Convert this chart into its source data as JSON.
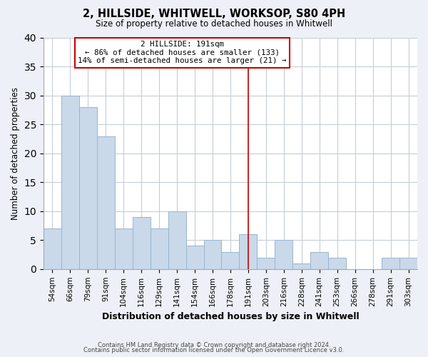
{
  "title": "2, HILLSIDE, WHITWELL, WORKSOP, S80 4PH",
  "subtitle": "Size of property relative to detached houses in Whitwell",
  "xlabel": "Distribution of detached houses by size in Whitwell",
  "ylabel": "Number of detached properties",
  "bar_color": "#c9d9ea",
  "bar_edgecolor": "#9ab4cc",
  "categories": [
    "54sqm",
    "66sqm",
    "79sqm",
    "91sqm",
    "104sqm",
    "116sqm",
    "129sqm",
    "141sqm",
    "154sqm",
    "166sqm",
    "178sqm",
    "191sqm",
    "203sqm",
    "216sqm",
    "228sqm",
    "241sqm",
    "253sqm",
    "266sqm",
    "278sqm",
    "291sqm",
    "303sqm"
  ],
  "values": [
    7,
    30,
    28,
    23,
    7,
    9,
    7,
    10,
    4,
    5,
    3,
    6,
    2,
    5,
    1,
    3,
    2,
    0,
    0,
    2,
    2
  ],
  "marker_index": 11,
  "marker_color": "#cc0000",
  "annotation_title": "2 HILLSIDE: 191sqm",
  "annotation_line1": "← 86% of detached houses are smaller (133)",
  "annotation_line2": "14% of semi-detached houses are larger (21) →",
  "ylim": [
    0,
    40
  ],
  "yticks": [
    0,
    5,
    10,
    15,
    20,
    25,
    30,
    35,
    40
  ],
  "footnote1": "Contains HM Land Registry data © Crown copyright and database right 2024.",
  "footnote2": "Contains public sector information licensed under the Open Government Licence v3.0.",
  "background_color": "#edf1f7",
  "plot_bg_color": "#ffffff",
  "grid_color": "#c5cdd8"
}
